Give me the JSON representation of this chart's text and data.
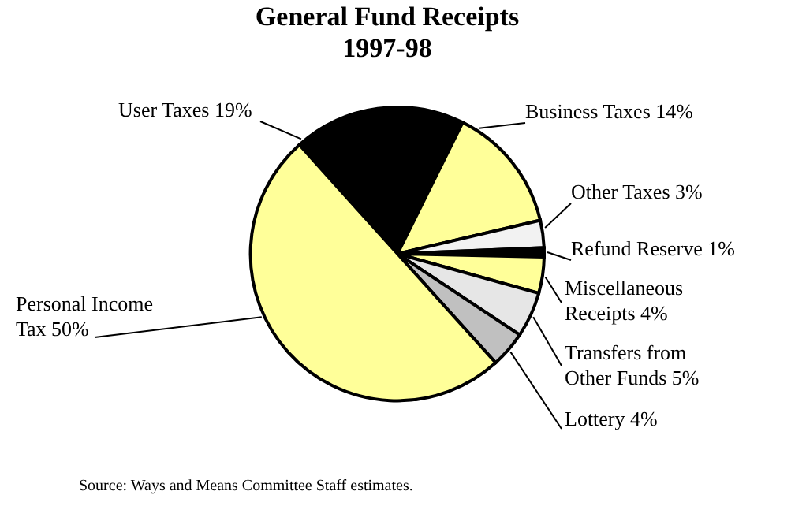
{
  "chart_data": {
    "type": "pie",
    "title": "General Fund Receipts",
    "subtitle": "1997-98",
    "categories": [
      "User Taxes",
      "Business Taxes",
      "Other Taxes",
      "Refund Reserve",
      "Miscellaneous Receipts",
      "Transfers from Other Funds",
      "Lottery",
      "Personal Income Tax"
    ],
    "values": [
      19,
      14,
      3,
      1,
      4,
      5,
      4,
      50
    ],
    "value_labels": [
      "19%",
      "14%",
      "3%",
      "1%",
      "4%",
      "5%",
      "4%",
      "50%"
    ],
    "colors": [
      "#000000",
      "#ffff99",
      "#f2f2f2",
      "#000000",
      "#ffff99",
      "#e6e6e6",
      "#c0c0c0",
      "#ffff99"
    ],
    "annotations": [
      "Source:  Ways and Means Committee Staff estimates."
    ]
  }
}
